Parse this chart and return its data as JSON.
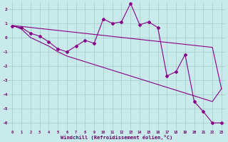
{
  "x_data": [
    0,
    1,
    2,
    3,
    4,
    5,
    6,
    7,
    8,
    9,
    10,
    11,
    12,
    13,
    14,
    15,
    16,
    17,
    18,
    19,
    20,
    21,
    22,
    23
  ],
  "y_main": [
    0.8,
    0.7,
    0.3,
    0.1,
    -0.3,
    -0.8,
    -1.0,
    -0.6,
    -0.2,
    -0.4,
    1.3,
    1.0,
    1.1,
    2.4,
    0.9,
    1.1,
    0.7,
    -2.7,
    -2.4,
    -1.2,
    -4.5,
    -5.2,
    -6.0,
    -6.0
  ],
  "y_upper": [
    0.85,
    0.78,
    0.71,
    0.64,
    0.57,
    0.5,
    0.43,
    0.36,
    0.29,
    0.22,
    0.15,
    0.08,
    0.01,
    -0.06,
    -0.13,
    -0.2,
    -0.27,
    -0.34,
    -0.41,
    -0.48,
    -0.55,
    -0.62,
    -0.69,
    -3.6
  ],
  "y_lower": [
    0.85,
    0.6,
    0.0,
    -0.3,
    -0.6,
    -1.0,
    -1.3,
    -1.5,
    -1.7,
    -1.9,
    -2.1,
    -2.3,
    -2.5,
    -2.7,
    -2.9,
    -3.1,
    -3.3,
    -3.5,
    -3.7,
    -3.9,
    -4.1,
    -4.3,
    -4.5,
    -3.6
  ],
  "xlim": [
    0,
    23
  ],
  "ylim": [
    -6.5,
    2.5
  ],
  "yticks": [
    -6,
    -5,
    -4,
    -3,
    -2,
    -1,
    0,
    1,
    2
  ],
  "xticks": [
    0,
    1,
    2,
    3,
    4,
    5,
    6,
    7,
    8,
    9,
    10,
    11,
    12,
    13,
    14,
    15,
    16,
    17,
    18,
    19,
    20,
    21,
    22,
    23
  ],
  "xlabel": "Windchill (Refroidissement éolien,°C)",
  "line_color": "#880088",
  "bg_color": "#c8eaea",
  "grid_color": "#a0c8c8"
}
